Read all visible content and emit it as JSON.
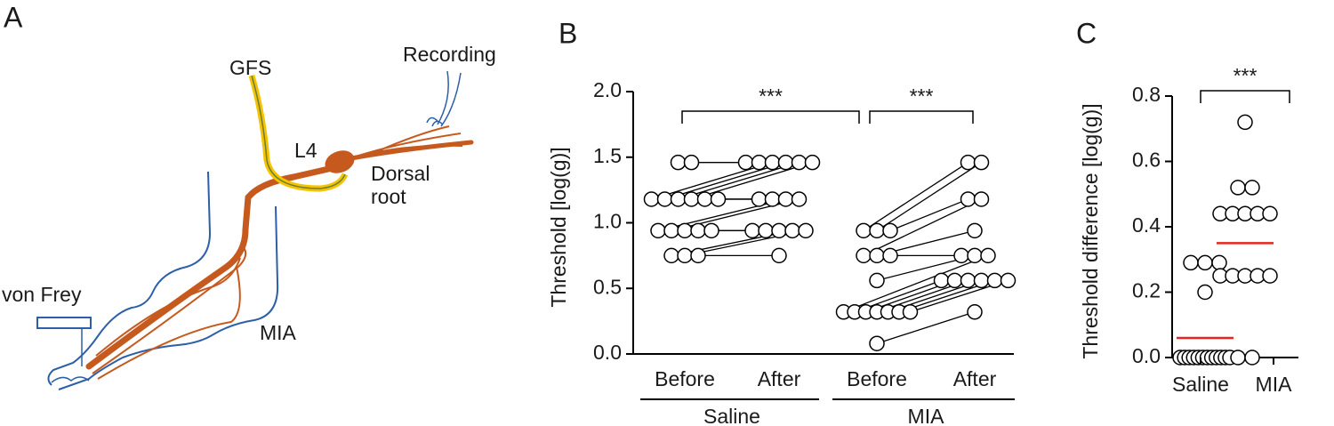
{
  "diagram": {
    "panel_label": "A",
    "labels": {
      "gfs": "GFS",
      "recording": "Recording",
      "l4": "L4",
      "dorsal_root": [
        "Dorsal",
        "root"
      ],
      "von_frey": "von Frey",
      "mia": "MIA"
    }
  },
  "chart_data": [
    {
      "type": "paired-dot",
      "panel_label": "B",
      "y_label": "Threshold [log(g)]",
      "ylim": [
        0,
        2
      ],
      "yticks": [
        {
          "value": 0,
          "label": "0.0"
        },
        0.5,
        {
          "value": 1,
          "label": "1.0"
        },
        1.5,
        {
          "value": 2,
          "label": "2.0"
        }
      ],
      "marker_color": "#ffffff",
      "groups": [
        {
          "name": "Saline",
          "categories": [
            "Before",
            "After"
          ],
          "values": [
            [
              1.46,
              1.46,
              1.18,
              1.18,
              1.18,
              1.18,
              1.18,
              1.18,
              0.94,
              0.94,
              0.94,
              0.94,
              0.94,
              0.75,
              0.75,
              0.75
            ],
            [
              1.46,
              1.46,
              1.46,
              1.46,
              1.46,
              1.46,
              1.18,
              1.18,
              1.18,
              1.18,
              0.94,
              0.94,
              0.94,
              0.94,
              0.94,
              0.75
            ]
          ]
        },
        {
          "name": "MIA",
          "categories": [
            "Before",
            "After"
          ],
          "values": [
            [
              0.94,
              0.94,
              0.94,
              0.75,
              0.75,
              0.75,
              0.56,
              0.32,
              0.32,
              0.32,
              0.32,
              0.32,
              0.32,
              0.32,
              0.08
            ],
            [
              1.46,
              1.46,
              1.18,
              1.18,
              0.94,
              0.75,
              0.75,
              0.75,
              0.56,
              0.56,
              0.56,
              0.56,
              0.56,
              0.56,
              0.32
            ]
          ]
        }
      ],
      "significance": [
        "***",
        "***"
      ]
    },
    {
      "type": "dot",
      "panel_label": "C",
      "y_label": "Threshold difference [log(g)]",
      "ylim": [
        0,
        0.8
      ],
      "yticks": [
        {
          "value": 0,
          "label": "0.0"
        },
        0.2,
        0.4,
        0.6,
        0.8
      ],
      "marker_color": "#ffffff",
      "mean_color": "#e8251f",
      "categories": [
        "Saline",
        "MIA"
      ],
      "values": [
        [
          0.29,
          0.29,
          0.29,
          0.2,
          0,
          0,
          0,
          0,
          0,
          0,
          0,
          0,
          0,
          0,
          0,
          0
        ],
        [
          0.72,
          0.52,
          0.52,
          0.44,
          0.44,
          0.44,
          0.44,
          0.44,
          0.25,
          0.25,
          0.25,
          0.25,
          0.25,
          0,
          0
        ]
      ],
      "means": [
        0.06,
        0.35
      ],
      "significance": "***"
    }
  ]
}
